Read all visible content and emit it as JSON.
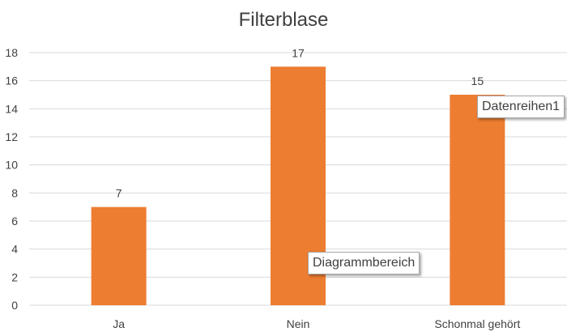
{
  "chart_data": {
    "type": "bar",
    "title": "Filterblase",
    "categories": [
      "Ja",
      "Nein",
      "Schonmal gehört"
    ],
    "series": [
      {
        "values": [
          7,
          17,
          15
        ],
        "color": "#ed7d31"
      }
    ],
    "data_labels": [
      "7",
      "17",
      "15"
    ],
    "ylim": [
      0,
      18
    ],
    "yticks": [
      0,
      2,
      4,
      6,
      8,
      10,
      12,
      14,
      16,
      18
    ],
    "grid": true,
    "legend": "none"
  },
  "tooltips": {
    "plot_area": "Diagrammbereich",
    "series": "Datenreihen1"
  }
}
